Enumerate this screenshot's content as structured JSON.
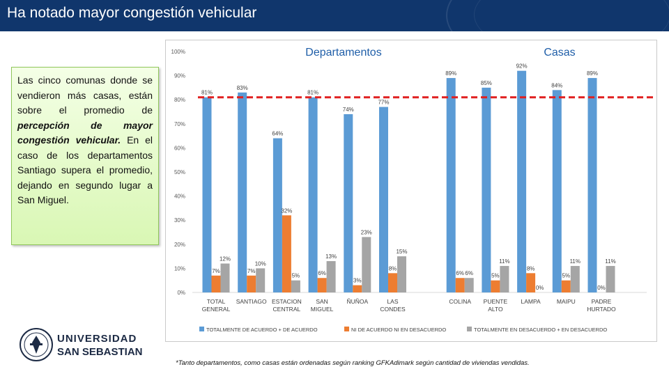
{
  "page": {
    "title": "Ha notado mayor congestión vehicular"
  },
  "callout": {
    "text_1": "Las cinco comunas donde se vendieron más casas, están sobre el promedio de ",
    "emphasis": "percepción de mayor congestión vehicular.",
    "text_2": " En el caso de los departamentos Santiago supera el promedio, dejando en segundo lugar a San Miguel."
  },
  "footnote": "*Tanto departamentos, como casas están ordenadas según ranking GFKAdimark según cantidad de viviendas vendidas.",
  "logo": {
    "line1": "UNIVERSIDAD",
    "line2": "SAN SEBASTIAN"
  },
  "chart_data": {
    "type": "bar",
    "group_titles": [
      "Departamentos",
      "Casas"
    ],
    "categories": [
      [
        "TOTAL",
        "GENERAL"
      ],
      [
        "SANTIAGO"
      ],
      [
        "ESTACION",
        "CENTRAL"
      ],
      [
        "SAN",
        "MIGUEL"
      ],
      [
        "ÑUÑOA"
      ],
      [
        "LAS",
        "CONDES"
      ],
      [
        "COLINA"
      ],
      [
        "PUENTE",
        "ALTO"
      ],
      [
        "LAMPA"
      ],
      [
        "MAIPU"
      ],
      [
        "PADRE",
        "HURTADO"
      ]
    ],
    "series": [
      {
        "name": "TOTALMENTE DE ACUERDO + DE ACUERDO",
        "color": "#5b9bd5",
        "values": [
          81,
          83,
          64,
          81,
          74,
          77,
          89,
          85,
          92,
          84,
          89
        ]
      },
      {
        "name": "NI DE ACUERDO NI EN DESACUERDO",
        "color": "#ed7d31",
        "values": [
          7,
          7,
          32,
          6,
          3,
          8,
          6,
          5,
          8,
          5,
          0
        ]
      },
      {
        "name": "TOTALMENTE EN DESACUERDO + EN DESACUERDO",
        "color": "#a5a5a5",
        "values": [
          12,
          10,
          5,
          13,
          23,
          15,
          6,
          11,
          0,
          11,
          11
        ]
      }
    ],
    "ylim": [
      0,
      100
    ],
    "yticks": [
      "0%",
      "10%",
      "20%",
      "30%",
      "40%",
      "50%",
      "60%",
      "70%",
      "80%",
      "90%",
      "100%"
    ],
    "average_line": {
      "value": 81,
      "color": "#e02020",
      "style": "dashed"
    },
    "grid": false,
    "legend_position": "bottom"
  }
}
